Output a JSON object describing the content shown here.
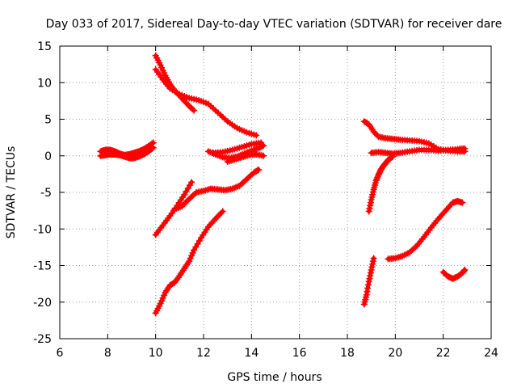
{
  "chart_data": {
    "type": "scatter",
    "title": "Day 033 of 2017, Sidereal Day-to-day VTEC variation (SDTVAR) for receiver dare",
    "xlabel": "GPS time / hours",
    "ylabel": "SDTVAR / TECUs",
    "xlim": [
      6,
      24
    ],
    "ylim": [
      -25,
      15
    ],
    "xticks": [
      6,
      8,
      10,
      12,
      14,
      16,
      18,
      20,
      22,
      24
    ],
    "yticks": [
      -25,
      -20,
      -15,
      -10,
      -5,
      0,
      5,
      10,
      15
    ],
    "grid": true,
    "legend": "none",
    "marker": "plus",
    "color": "#ff0000",
    "series": [
      {
        "x": [
          7.7,
          7.9,
          8.1,
          8.3,
          8.5,
          8.7,
          8.9,
          9.1,
          9.3,
          9.5,
          9.7,
          9.9
        ],
        "y": [
          0.6,
          0.8,
          0.8,
          0.6,
          0.3,
          0.1,
          0.2,
          0.4,
          0.6,
          0.9,
          1.3,
          1.8
        ]
      },
      {
        "x": [
          7.7,
          7.9,
          8.1,
          8.3,
          8.5,
          8.7,
          8.9,
          9.1,
          9.3,
          9.5,
          9.7,
          9.9
        ],
        "y": [
          0.0,
          0.1,
          0.2,
          0.2,
          0.1,
          -0.1,
          -0.3,
          -0.3,
          -0.1,
          0.2,
          0.6,
          1.1
        ]
      },
      {
        "x": [
          10.0,
          10.2,
          10.4,
          10.6,
          10.8,
          11.0,
          11.2,
          11.4,
          11.6
        ],
        "y": [
          13.7,
          12.4,
          11.0,
          9.8,
          8.9,
          8.2,
          7.5,
          6.8,
          6.2
        ]
      },
      {
        "x": [
          10.0,
          10.3,
          10.6,
          11.0,
          11.4,
          11.8,
          12.2,
          12.6,
          13.0,
          13.4,
          13.8,
          14.2
        ],
        "y": [
          11.8,
          10.4,
          9.2,
          8.4,
          7.9,
          7.6,
          7.1,
          5.9,
          4.7,
          3.8,
          3.2,
          2.8
        ]
      },
      {
        "x": [
          12.2,
          12.5,
          12.8,
          13.1,
          13.4,
          13.7,
          14.0,
          14.3,
          14.5
        ],
        "y": [
          0.6,
          0.2,
          -0.2,
          -0.3,
          -0.1,
          0.3,
          0.7,
          1.1,
          1.4
        ]
      },
      {
        "x": [
          12.4,
          12.8,
          13.2,
          13.6,
          14.0,
          14.4
        ],
        "y": [
          0.4,
          0.5,
          0.8,
          1.2,
          1.6,
          1.8
        ]
      },
      {
        "x": [
          13.0,
          13.3,
          13.6,
          13.9,
          14.2,
          14.5
        ],
        "y": [
          -0.8,
          -0.5,
          -0.2,
          0.1,
          0.2,
          0.0
        ]
      },
      {
        "x": [
          10.0,
          10.3,
          10.6,
          10.9,
          11.2,
          11.5
        ],
        "y": [
          -10.8,
          -9.5,
          -8.2,
          -6.8,
          -5.3,
          -3.6
        ]
      },
      {
        "x": [
          10.8,
          11.1,
          11.4,
          11.7,
          12.0,
          12.3,
          12.6,
          12.9,
          13.2,
          13.5,
          13.8,
          14.1,
          14.3
        ],
        "y": [
          -7.3,
          -6.9,
          -5.9,
          -5.0,
          -4.8,
          -4.5,
          -4.6,
          -4.7,
          -4.5,
          -4.1,
          -3.2,
          -2.3,
          -1.9
        ]
      },
      {
        "x": [
          10.0,
          10.2,
          10.4,
          10.6,
          10.8,
          11.0,
          11.2,
          11.4,
          11.6,
          11.9,
          12.2,
          12.5,
          12.8
        ],
        "y": [
          -21.5,
          -20.2,
          -18.7,
          -17.7,
          -17.3,
          -16.4,
          -15.4,
          -14.4,
          -12.9,
          -11.2,
          -9.7,
          -8.6,
          -7.6
        ]
      },
      {
        "x": [
          18.7,
          18.9,
          19.1,
          19.3,
          19.6,
          19.9,
          20.2,
          20.6,
          21.0,
          21.4,
          21.8,
          22.2,
          22.6,
          22.9
        ],
        "y": [
          4.7,
          4.3,
          3.3,
          2.6,
          2.4,
          2.3,
          2.2,
          2.1,
          2.0,
          1.7,
          0.9,
          0.7,
          0.6,
          0.6
        ]
      },
      {
        "x": [
          19.0,
          19.3,
          19.6,
          19.9,
          20.2,
          20.6,
          21.0,
          21.4,
          21.8,
          22.2,
          22.6,
          22.9
        ],
        "y": [
          0.4,
          0.5,
          0.4,
          0.3,
          0.4,
          0.6,
          0.8,
          0.8,
          0.7,
          0.8,
          0.9,
          1.0
        ]
      },
      {
        "x": [
          18.9,
          19.0,
          19.1,
          19.2,
          19.3,
          19.4,
          19.5,
          19.6,
          19.7,
          19.8,
          19.9
        ],
        "y": [
          -7.6,
          -6.0,
          -4.6,
          -3.4,
          -2.6,
          -1.9,
          -1.4,
          -1.0,
          -0.6,
          -0.3,
          -0.1
        ]
      },
      {
        "x": [
          18.7,
          18.8,
          18.9,
          19.0,
          19.1
        ],
        "y": [
          -20.3,
          -19.0,
          -17.2,
          -15.6,
          -14.0
        ]
      },
      {
        "x": [
          19.7,
          20.0,
          20.3,
          20.6,
          20.9,
          21.2,
          21.5,
          21.8,
          22.1,
          22.4,
          22.6,
          22.8
        ],
        "y": [
          -14.1,
          -14.0,
          -13.7,
          -13.2,
          -12.3,
          -11.1,
          -9.8,
          -8.6,
          -7.5,
          -6.4,
          -6.2,
          -6.4
        ]
      },
      {
        "x": [
          22.0,
          22.2,
          22.4,
          22.6,
          22.8,
          22.9
        ],
        "y": [
          -15.9,
          -16.5,
          -16.8,
          -16.5,
          -16.0,
          -15.6
        ]
      }
    ]
  }
}
